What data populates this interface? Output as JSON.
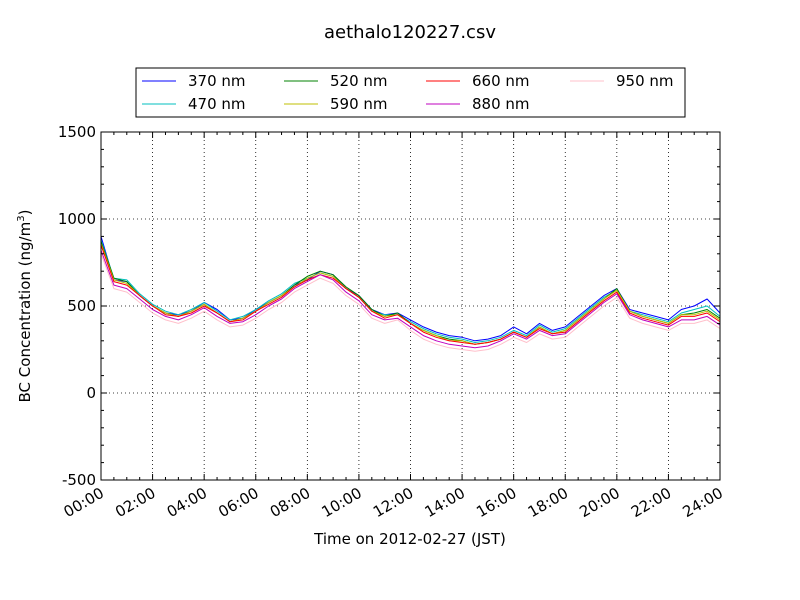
{
  "chart_data": {
    "type": "line",
    "title": "aethalo120227.csv",
    "xlabel": "Time on 2012-02-27 (JST)",
    "ylabel_main": "BC Concentration (ng/m",
    "ylabel_sup": "3",
    "ylabel_tail": ")",
    "xlim": [
      "00:00",
      "24:00"
    ],
    "ylim": [
      -500,
      1500
    ],
    "x_tick_labels": [
      "00:00",
      "02:00",
      "04:00",
      "06:00",
      "08:00",
      "10:00",
      "12:00",
      "14:00",
      "16:00",
      "18:00",
      "20:00",
      "22:00",
      "24:00"
    ],
    "y_ticks": [
      -500,
      0,
      500,
      1000,
      1500
    ],
    "grid": true,
    "legend_placement": "top-center",
    "x_hours": [
      0,
      0.5,
      1,
      1.5,
      2,
      2.5,
      3,
      3.5,
      4,
      4.5,
      5,
      5.5,
      6,
      6.5,
      7,
      7.5,
      8,
      8.5,
      9,
      9.5,
      10,
      10.5,
      11,
      11.5,
      12,
      12.5,
      13,
      13.5,
      14,
      14.5,
      15,
      15.5,
      16,
      16.5,
      17,
      17.5,
      18,
      18.5,
      19,
      19.5,
      20,
      20.5,
      21,
      21.5,
      22,
      22.5,
      23,
      23.5,
      24
    ],
    "series": [
      {
        "name": "370 nm",
        "color": "#0000ff",
        "values": [
          900,
          650,
          640,
          560,
          500,
          460,
          450,
          470,
          520,
          480,
          420,
          430,
          480,
          520,
          560,
          620,
          650,
          700,
          680,
          600,
          560,
          480,
          450,
          460,
          420,
          380,
          350,
          330,
          320,
          300,
          310,
          330,
          380,
          340,
          400,
          360,
          380,
          440,
          500,
          560,
          600,
          480,
          460,
          440,
          420,
          480,
          500,
          540,
          460
        ]
      },
      {
        "name": "470 nm",
        "color": "#00bfbf",
        "values": [
          880,
          660,
          650,
          570,
          510,
          470,
          450,
          480,
          520,
          470,
          420,
          440,
          480,
          530,
          570,
          630,
          660,
          690,
          670,
          600,
          550,
          470,
          450,
          450,
          410,
          370,
          340,
          320,
          310,
          290,
          300,
          320,
          360,
          330,
          390,
          350,
          370,
          430,
          490,
          550,
          590,
          470,
          450,
          430,
          410,
          460,
          480,
          500,
          440
        ]
      },
      {
        "name": "520 nm",
        "color": "#008000",
        "values": [
          870,
          660,
          640,
          560,
          500,
          460,
          440,
          470,
          510,
          460,
          410,
          430,
          470,
          520,
          560,
          620,
          670,
          700,
          680,
          610,
          560,
          480,
          440,
          460,
          400,
          360,
          330,
          310,
          300,
          280,
          290,
          310,
          350,
          320,
          380,
          340,
          360,
          420,
          480,
          540,
          600,
          470,
          440,
          420,
          400,
          450,
          460,
          480,
          430
        ]
      },
      {
        "name": "590 nm",
        "color": "#bfbf00",
        "values": [
          860,
          650,
          630,
          560,
          500,
          460,
          440,
          470,
          510,
          460,
          410,
          430,
          470,
          520,
          560,
          610,
          660,
          690,
          670,
          600,
          550,
          470,
          440,
          450,
          400,
          360,
          330,
          300,
          300,
          280,
          290,
          310,
          350,
          320,
          380,
          340,
          360,
          420,
          480,
          540,
          590,
          470,
          440,
          420,
          400,
          450,
          450,
          470,
          420
        ]
      },
      {
        "name": "660 nm",
        "color": "#ff0000",
        "values": [
          850,
          640,
          620,
          560,
          500,
          450,
          440,
          460,
          500,
          460,
          410,
          420,
          470,
          510,
          550,
          610,
          650,
          680,
          660,
          600,
          550,
          470,
          430,
          450,
          400,
          350,
          320,
          300,
          290,
          280,
          290,
          310,
          350,
          320,
          370,
          340,
          350,
          410,
          470,
          530,
          580,
          460,
          430,
          410,
          390,
          440,
          440,
          460,
          410
        ]
      },
      {
        "name": "880 nm",
        "color": "#bf00bf",
        "values": [
          820,
          620,
          600,
          540,
          480,
          440,
          420,
          450,
          490,
          440,
          400,
          410,
          450,
          500,
          540,
          600,
          640,
          680,
          650,
          580,
          530,
          450,
          420,
          430,
          380,
          330,
          300,
          280,
          270,
          260,
          270,
          300,
          340,
          310,
          360,
          330,
          340,
          400,
          460,
          520,
          570,
          450,
          420,
          400,
          380,
          420,
          420,
          440,
          390
        ]
      },
      {
        "name": "950 nm",
        "color": "#ffc0cb",
        "values": [
          800,
          600,
          580,
          520,
          460,
          420,
          400,
          430,
          470,
          420,
          380,
          390,
          430,
          480,
          520,
          580,
          620,
          660,
          630,
          560,
          510,
          430,
          400,
          420,
          360,
          310,
          280,
          260,
          250,
          240,
          250,
          280,
          320,
          290,
          340,
          310,
          320,
          380,
          440,
          500,
          550,
          430,
          400,
          380,
          360,
          400,
          400,
          420,
          370
        ]
      }
    ]
  }
}
